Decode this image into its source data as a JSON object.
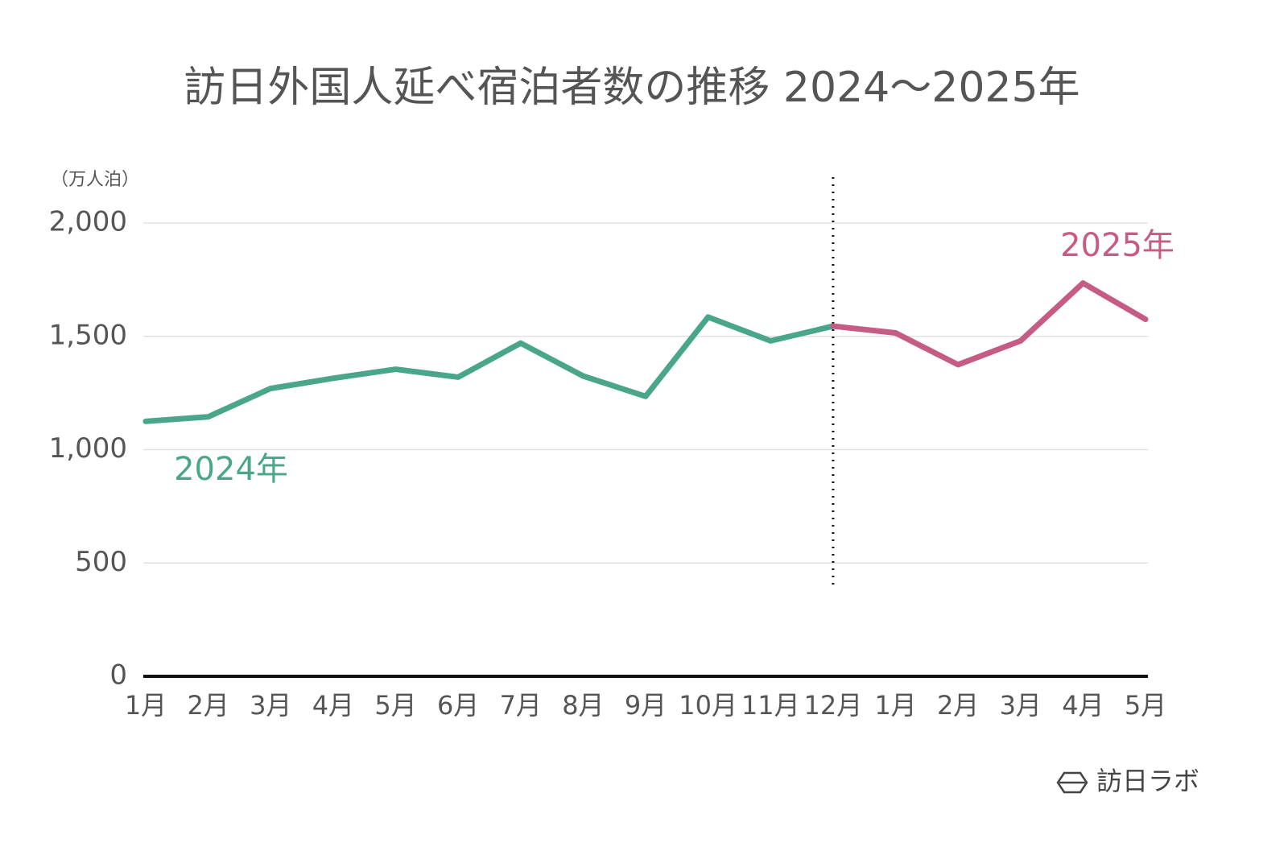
{
  "chart_data": {
    "type": "line",
    "title": "訪日外国人延べ宿泊者数の推移 2024〜2025年",
    "y_axis_label": "（万人泊）",
    "categories": [
      "1月",
      "2月",
      "3月",
      "4月",
      "5月",
      "6月",
      "7月",
      "8月",
      "9月",
      "10月",
      "11月",
      "12月",
      "1月",
      "2月",
      "3月",
      "4月",
      "5月"
    ],
    "series": [
      {
        "name": "2024年",
        "color": "#4aa68a",
        "values": [
          1125,
          1145,
          1270,
          1315,
          1355,
          1320,
          1470,
          1325,
          1235,
          1585,
          1480,
          1545,
          null,
          null,
          null,
          null,
          null
        ]
      },
      {
        "name": "2025年",
        "color": "#c65c85",
        "values": [
          null,
          null,
          null,
          null,
          null,
          null,
          null,
          null,
          null,
          null,
          null,
          null,
          1515,
          1375,
          1480,
          1735,
          1575
        ]
      }
    ],
    "ylim": [
      0,
      2000
    ],
    "yticks": [
      0,
      500,
      {
        "value": 1000,
        "label": "1,000"
      },
      {
        "value": 1500,
        "label": "1,500"
      },
      {
        "value": 2000,
        "label": "2,000"
      }
    ],
    "grid": true,
    "brand": "訪日ラボ"
  }
}
